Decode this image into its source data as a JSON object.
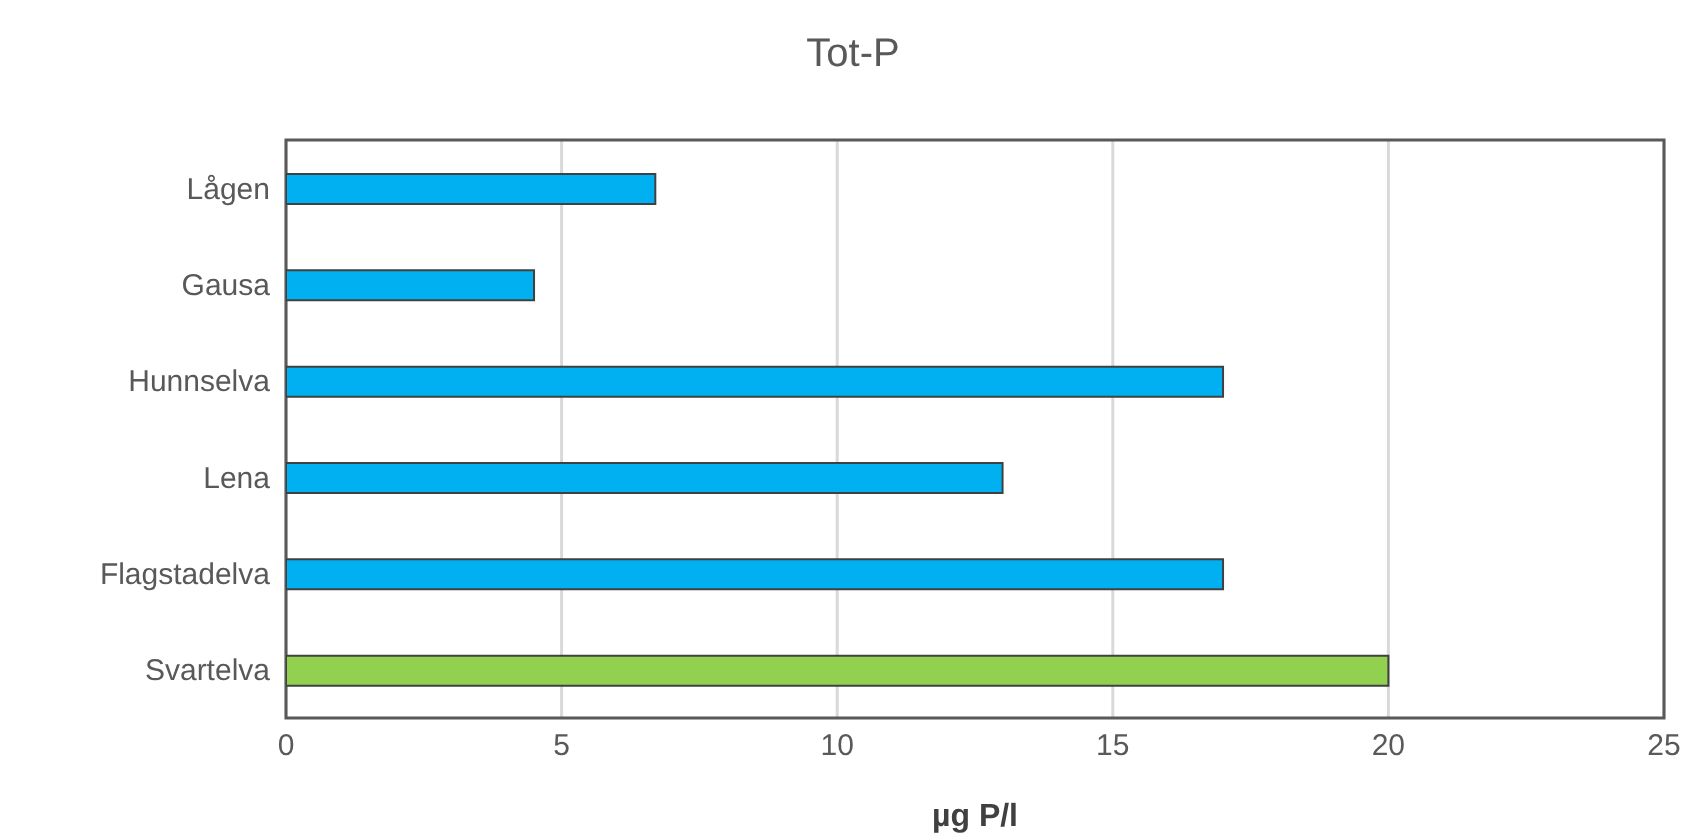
{
  "chart_data": {
    "type": "bar",
    "orientation": "horizontal",
    "title": "Tot-P",
    "xlabel": "µg P/l",
    "categories": [
      "Lågen",
      "Gausa",
      "Hunnselva",
      "Lena",
      "Flagstadelva",
      "Svartelva"
    ],
    "values": [
      6.7,
      4.5,
      17,
      13,
      17,
      20
    ],
    "colors": [
      "#00b0f0",
      "#00b0f0",
      "#00b0f0",
      "#00b0f0",
      "#00b0f0",
      "#92d050"
    ],
    "xlim": [
      0,
      25
    ],
    "xticks": [
      0,
      5,
      10,
      15,
      20,
      25
    ],
    "grid": "x",
    "legend": false
  }
}
